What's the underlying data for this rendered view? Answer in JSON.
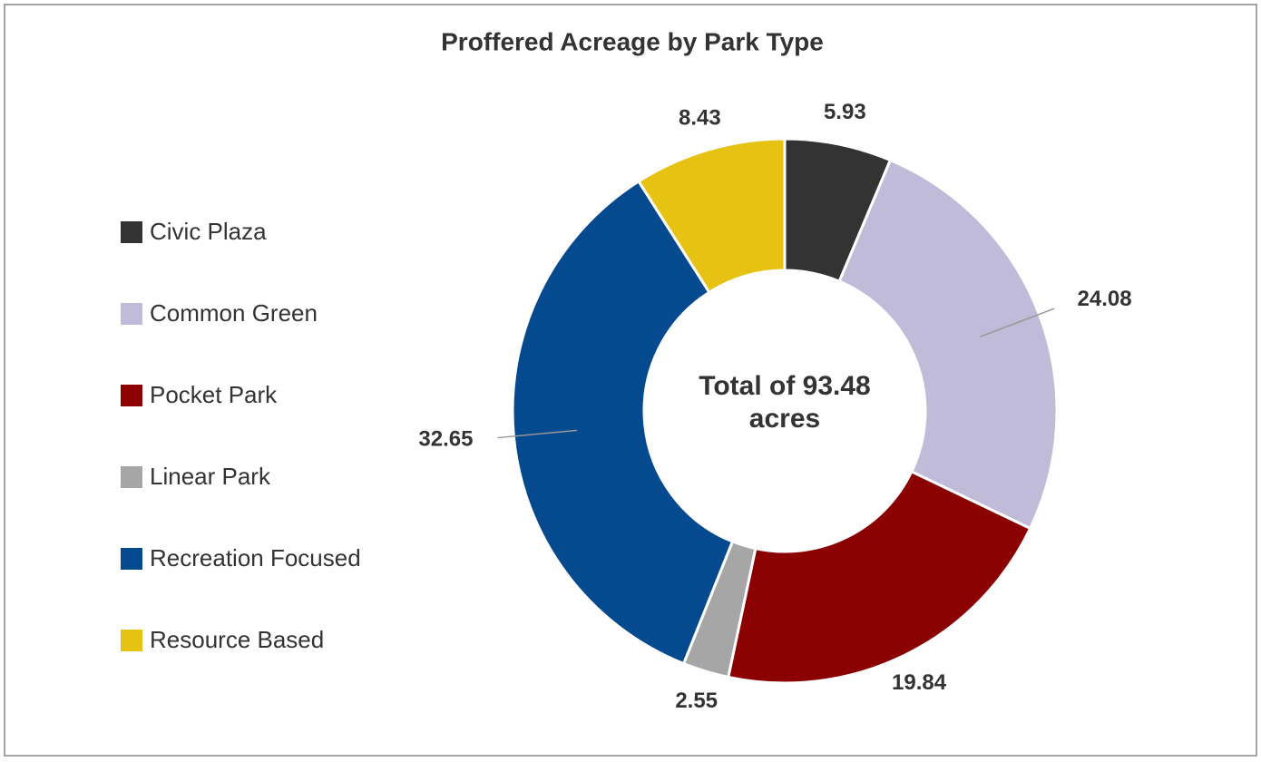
{
  "chart_data": {
    "type": "donut",
    "title": "Proffered Acreage by Park Type",
    "center_label": "Total of 93.48 acres",
    "categories": [
      "Civic Plaza",
      "Common Green",
      "Pocket Park",
      "Linear Park",
      "Recreation Focused",
      "Resource Based"
    ],
    "values": [
      5.93,
      24.08,
      19.84,
      2.55,
      32.65,
      8.43
    ],
    "colors": [
      "#333333",
      "#c0bbd8",
      "#8b0000",
      "#a6a6a6",
      "#05498f",
      "#e6c212"
    ],
    "legend": "left"
  }
}
